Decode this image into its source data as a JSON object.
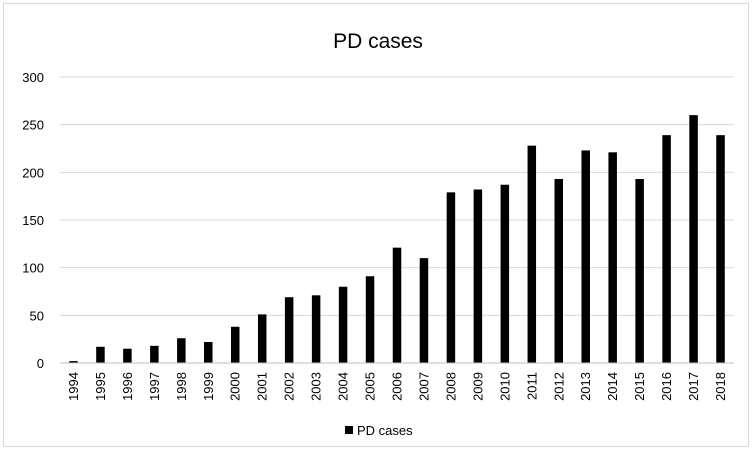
{
  "chart_data": {
    "type": "bar",
    "title": "PD cases",
    "xlabel": "",
    "ylabel": "",
    "categories": [
      "1994",
      "1995",
      "1996",
      "1997",
      "1998",
      "1999",
      "2000",
      "2001",
      "2002",
      "2003",
      "2004",
      "2005",
      "2006",
      "2007",
      "2008",
      "2009",
      "2010",
      "2011",
      "2012",
      "2013",
      "2014",
      "2015",
      "2016",
      "2017",
      "2018"
    ],
    "series": [
      {
        "name": "PD cases",
        "values": [
          2,
          17,
          15,
          18,
          26,
          22,
          38,
          51,
          69,
          71,
          80,
          91,
          121,
          110,
          179,
          182,
          187,
          228,
          193,
          223,
          221,
          193,
          239,
          260,
          239
        ],
        "color": "#000000"
      }
    ],
    "ylim": [
      0,
      300
    ],
    "yticks": [
      0,
      50,
      100,
      150,
      200,
      250,
      300
    ],
    "grid": true,
    "legend_position": "bottom"
  }
}
